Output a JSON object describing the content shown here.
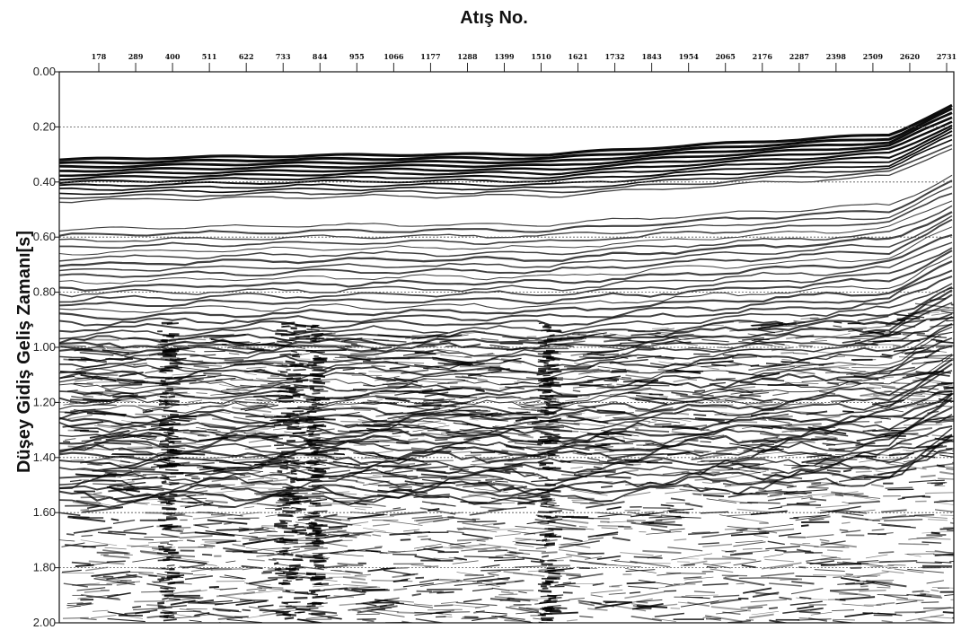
{
  "figure": {
    "title": "Atış No.",
    "ylabel": "Düşey Gidiş Geliş Zamanı[s]"
  },
  "axes": {
    "x_ticks": [
      "178",
      "289",
      "400",
      "511",
      "622",
      "733",
      "844",
      "955",
      "1066",
      "1177",
      "1288",
      "1399",
      "1510",
      "1621",
      "1732",
      "1843",
      "1954",
      "2065",
      "2176",
      "2287",
      "2398",
      "2509",
      "2620",
      "2731"
    ],
    "y_ticks": [
      "0.00",
      "0.20",
      "0.40",
      "0.60",
      "0.80",
      "1.00",
      "1.20",
      "1.40",
      "1.60",
      "1.80",
      "2.00"
    ],
    "y_values": [
      0.0,
      0.2,
      0.4,
      0.6,
      0.8,
      1.0,
      1.2,
      1.4,
      1.6,
      1.8,
      2.0
    ]
  },
  "image": {
    "kind": "seismic-section",
    "colors": {
      "trace": "#000000",
      "background": "#ffffff",
      "grid": "#555555"
    }
  }
}
